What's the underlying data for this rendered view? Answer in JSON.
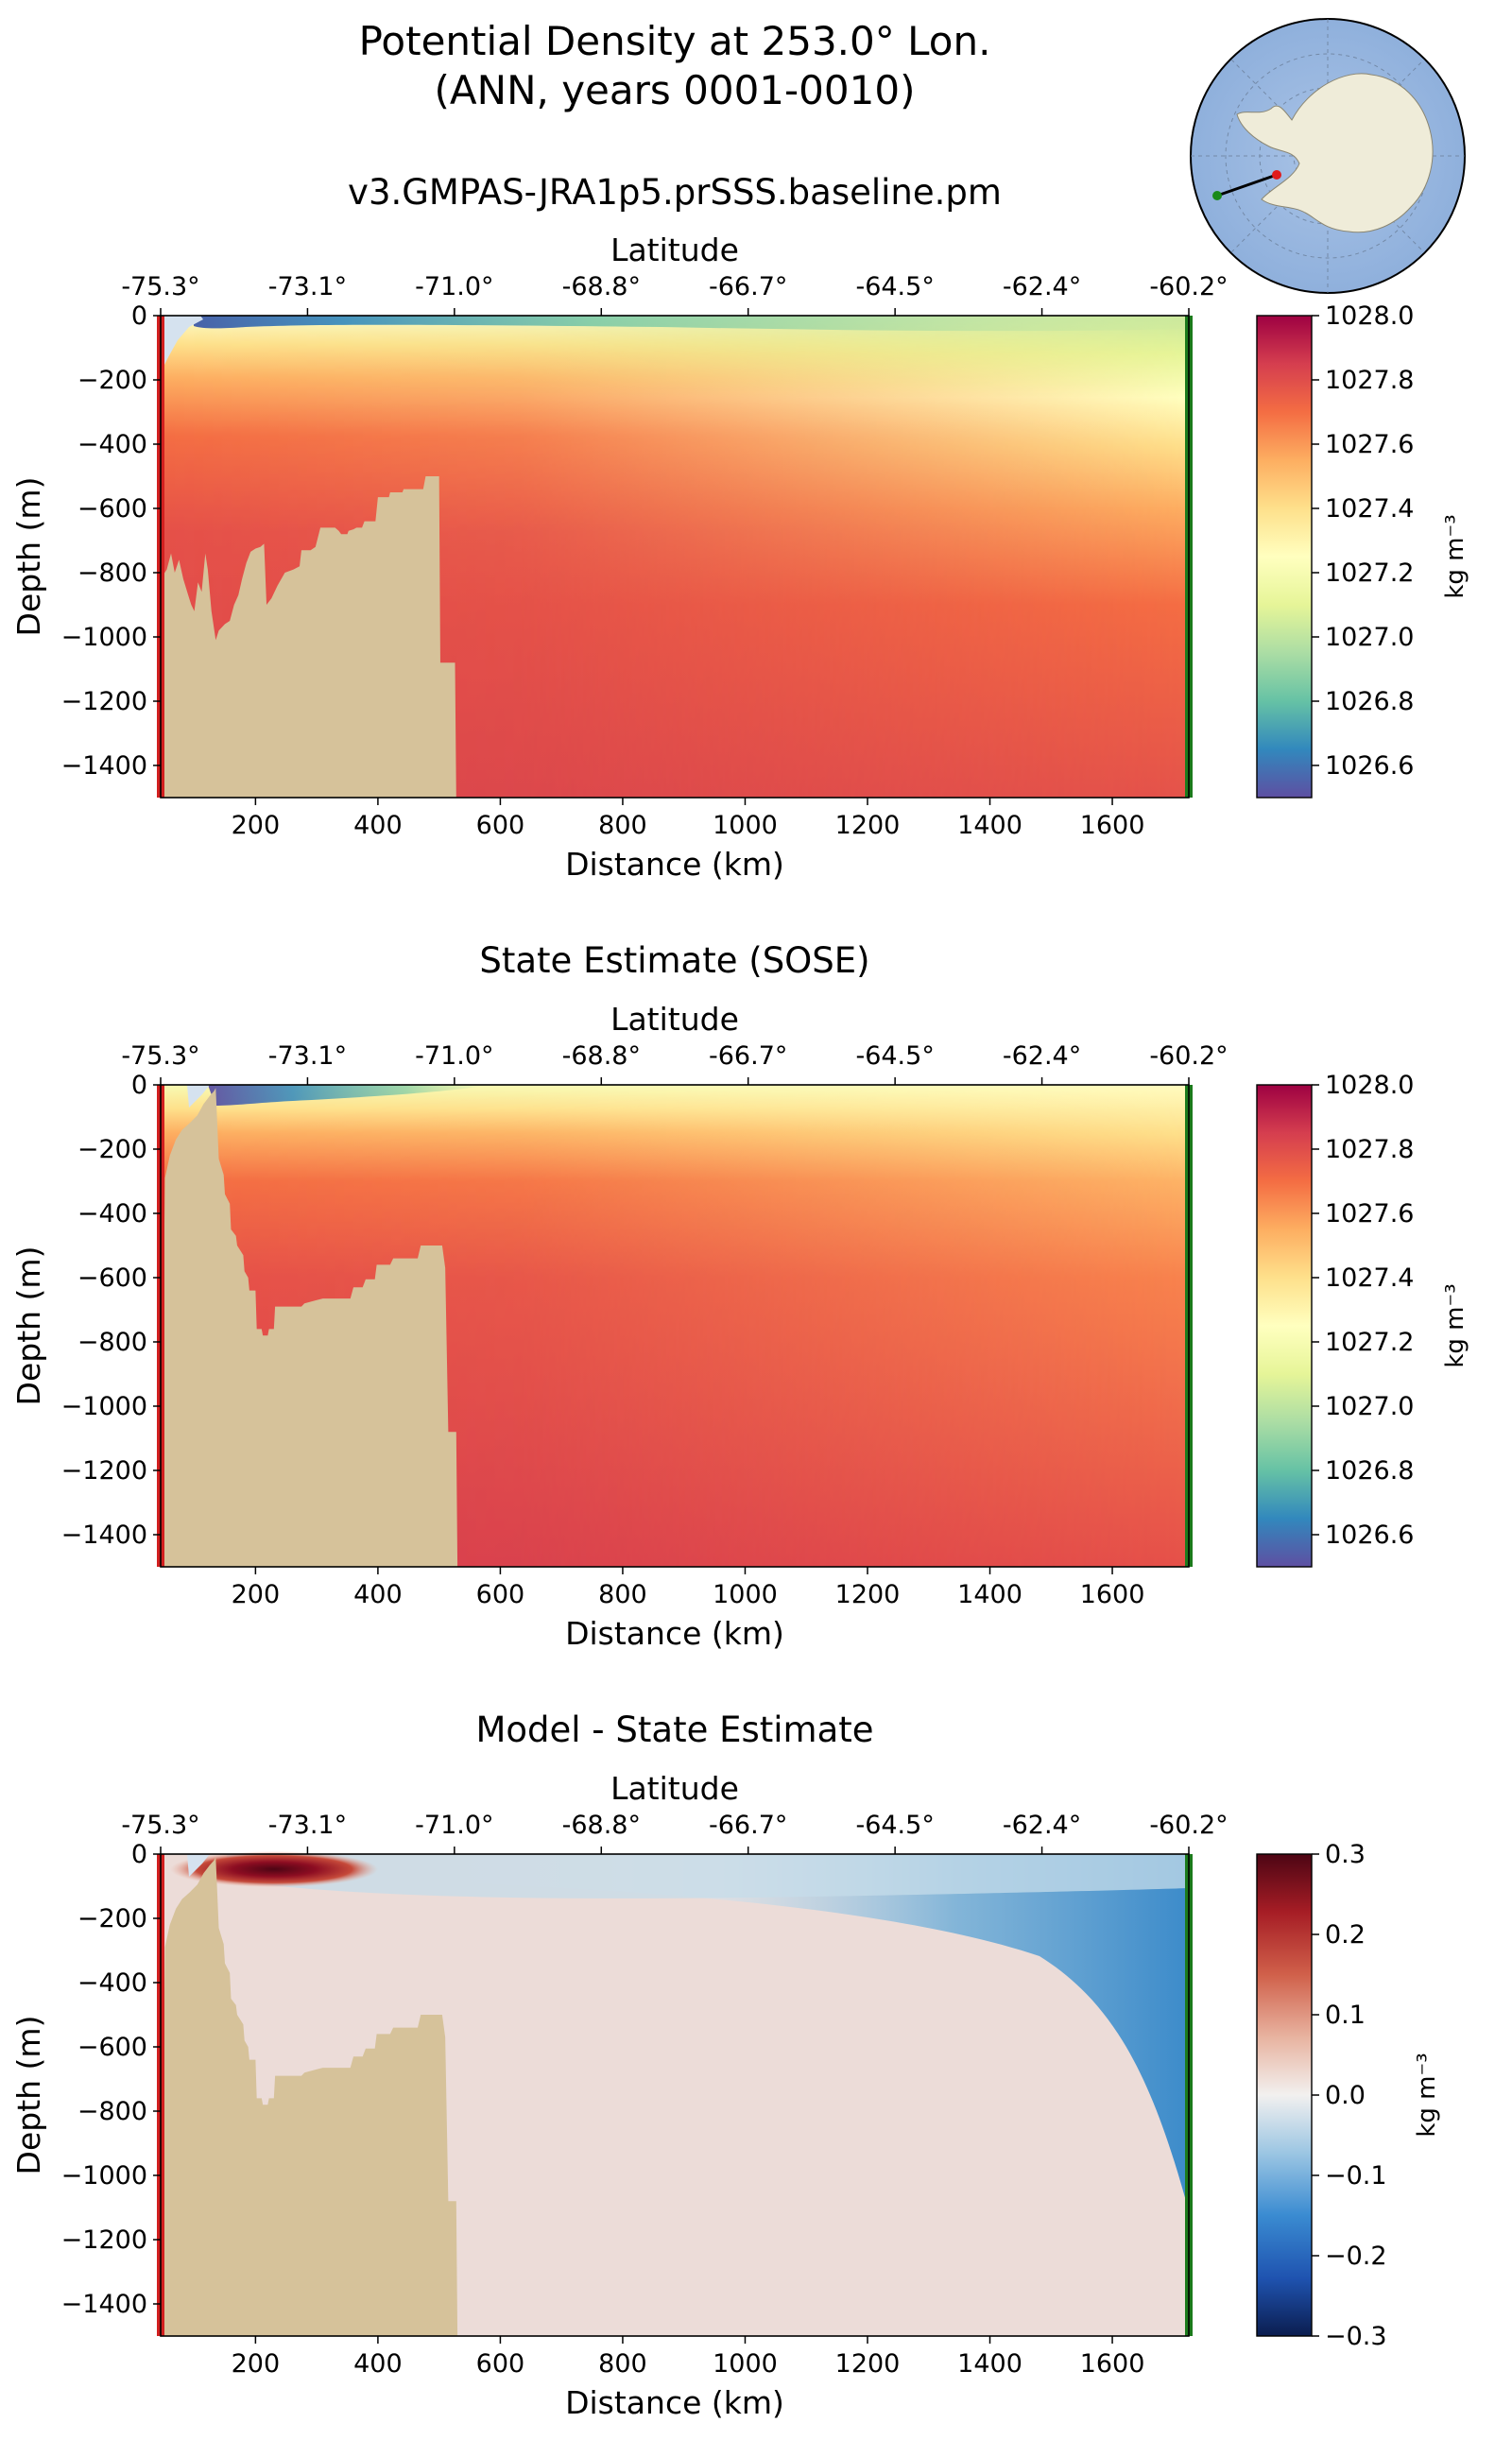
{
  "figure": {
    "title_line1": "Potential Density at 253.0° Lon.",
    "title_line2": "(ANN, years 0001-0010)"
  },
  "inset_map": {
    "description_icon": "antarctica-polar-map",
    "colors": {
      "ocean": "#9cb9e1",
      "land": "#efecd9",
      "transect": "#000000",
      "start": "#e01a1a",
      "end": "#1a8a1a"
    }
  },
  "colors": {
    "bathymetry": "#d6c29a",
    "ice_shelf": "#d5e2ef",
    "start_marker": "#d21f1f",
    "end_marker": "#1c7a1c"
  },
  "chart_data": [
    {
      "type": "heatmap",
      "title": "v3.GMPAS-JRA1p5.prSSS.baseline.pm",
      "xlabel": "Distance (km)",
      "ylabel": "Depth (m)",
      "top_xlabel": "Latitude",
      "xlim": [
        45,
        1725
      ],
      "ylim": [
        -1500,
        0
      ],
      "x_ticks": [
        "200",
        "400",
        "600",
        "800",
        "1000",
        "1200",
        "1400",
        "1600"
      ],
      "y_ticks": [
        "0",
        "−200",
        "−400",
        "−600",
        "−800",
        "−1000",
        "−1200",
        "−1400"
      ],
      "lat_ticks": [
        "-75.3°",
        "-73.1°",
        "-71.0°",
        "-68.8°",
        "-66.7°",
        "-64.5°",
        "-62.4°",
        "-60.2°"
      ],
      "colormap": "Spectral_r",
      "colorbar": {
        "label": "kg m⁻³",
        "range": [
          1026.5,
          1028.0
        ],
        "ticks": [
          "1028.0",
          "1027.8",
          "1027.6",
          "1027.4",
          "1027.2",
          "1027.0",
          "1026.8",
          "1026.6"
        ]
      },
      "bathymetry_depth": [
        [
          45,
          -820
        ],
        [
          55,
          -790
        ],
        [
          62,
          -740
        ],
        [
          68,
          -800
        ],
        [
          75,
          -760
        ],
        [
          82,
          -820
        ],
        [
          90,
          -870
        ],
        [
          95,
          -900
        ],
        [
          100,
          -920
        ],
        [
          106,
          -830
        ],
        [
          112,
          -860
        ],
        [
          118,
          -740
        ],
        [
          122,
          -790
        ],
        [
          128,
          -920
        ],
        [
          135,
          -1010
        ],
        [
          140,
          -980
        ],
        [
          150,
          -960
        ],
        [
          158,
          -950
        ],
        [
          165,
          -900
        ],
        [
          172,
          -870
        ],
        [
          178,
          -820
        ],
        [
          185,
          -770
        ],
        [
          192,
          -735
        ],
        [
          200,
          -725
        ],
        [
          208,
          -720
        ],
        [
          214,
          -710
        ],
        [
          218,
          -900
        ],
        [
          226,
          -880
        ],
        [
          236,
          -840
        ],
        [
          248,
          -800
        ],
        [
          262,
          -790
        ],
        [
          272,
          -780
        ],
        [
          275,
          -730
        ],
        [
          290,
          -730
        ],
        [
          298,
          -720
        ],
        [
          306,
          -660
        ],
        [
          330,
          -660
        ],
        [
          336,
          -670
        ],
        [
          340,
          -680
        ],
        [
          350,
          -680
        ],
        [
          352,
          -670
        ],
        [
          360,
          -665
        ],
        [
          365,
          -660
        ],
        [
          374,
          -660
        ],
        [
          378,
          -640
        ],
        [
          396,
          -640
        ],
        [
          400,
          -565
        ],
        [
          418,
          -565
        ],
        [
          420,
          -550
        ],
        [
          440,
          -550
        ],
        [
          442,
          -540
        ],
        [
          474,
          -540
        ],
        [
          478,
          -500
        ],
        [
          500,
          -500
        ],
        [
          502,
          -1080
        ],
        [
          526,
          -1080
        ],
        [
          528,
          -1500
        ]
      ],
      "ice_shelf": "small wedge near 60–110 km, 0 to −175 m",
      "field_description": "Light, fresh surface layer (≈1026.5–1026.9) from ~100 km to ~900 km, thinning offshore; pycnocline near −100 to −300 m deepening northward; deep water ≈1027.8 near coast, ≈1027.75 offshore"
    },
    {
      "type": "heatmap",
      "title": "State Estimate (SOSE)",
      "xlabel": "Distance (km)",
      "ylabel": "Depth (m)",
      "top_xlabel": "Latitude",
      "xlim": [
        45,
        1725
      ],
      "ylim": [
        -1500,
        0
      ],
      "x_ticks": [
        "200",
        "400",
        "600",
        "800",
        "1000",
        "1200",
        "1400",
        "1600"
      ],
      "y_ticks": [
        "0",
        "−200",
        "−400",
        "−600",
        "−800",
        "−1000",
        "−1200",
        "−1400"
      ],
      "lat_ticks": [
        "-75.3°",
        "-73.1°",
        "-71.0°",
        "-68.8°",
        "-66.7°",
        "-64.5°",
        "-62.4°",
        "-60.2°"
      ],
      "colormap": "Spectral_r",
      "colorbar": {
        "label": "kg m⁻³",
        "range": [
          1026.5,
          1028.0
        ],
        "ticks": [
          "1028.0",
          "1027.8",
          "1027.6",
          "1027.4",
          "1027.2",
          "1027.0",
          "1026.8",
          "1026.6"
        ]
      },
      "bathymetry_depth": [
        [
          45,
          -1500
        ],
        [
          52,
          -290
        ],
        [
          60,
          -220
        ],
        [
          70,
          -170
        ],
        [
          80,
          -140
        ],
        [
          92,
          -120
        ],
        [
          105,
          -95
        ],
        [
          115,
          -60
        ],
        [
          125,
          -35
        ],
        [
          132,
          -20
        ],
        [
          135,
          -10
        ],
        [
          140,
          -230
        ],
        [
          148,
          -280
        ],
        [
          150,
          -340
        ],
        [
          158,
          -370
        ],
        [
          160,
          -450
        ],
        [
          168,
          -470
        ],
        [
          170,
          -500
        ],
        [
          180,
          -530
        ],
        [
          182,
          -580
        ],
        [
          188,
          -600
        ],
        [
          190,
          -640
        ],
        [
          200,
          -640
        ],
        [
          202,
          -760
        ],
        [
          210,
          -760
        ],
        [
          212,
          -780
        ],
        [
          220,
          -780
        ],
        [
          222,
          -760
        ],
        [
          230,
          -760
        ],
        [
          232,
          -690
        ],
        [
          275,
          -690
        ],
        [
          280,
          -680
        ],
        [
          300,
          -670
        ],
        [
          310,
          -665
        ],
        [
          340,
          -665
        ],
        [
          355,
          -665
        ],
        [
          360,
          -630
        ],
        [
          375,
          -630
        ],
        [
          380,
          -605
        ],
        [
          395,
          -605
        ],
        [
          398,
          -560
        ],
        [
          420,
          -560
        ],
        [
          425,
          -540
        ],
        [
          465,
          -540
        ],
        [
          470,
          -500
        ],
        [
          505,
          -500
        ],
        [
          510,
          -570
        ],
        [
          515,
          -1080
        ],
        [
          528,
          -1080
        ],
        [
          530,
          -1500
        ]
      ],
      "ice_shelf": "thin wedge near 80–130 km, 0 to −80 m",
      "field_description": "Light surface layer confined near coast (130–450 km, 0 to −60 m); pycnocline −50 to −250 m; deep water ≈1027.85 near coast, ≈1027.7 offshore"
    },
    {
      "type": "heatmap",
      "title": "Model - State Estimate",
      "xlabel": "Distance (km)",
      "ylabel": "Depth (m)",
      "top_xlabel": "Latitude",
      "xlim": [
        45,
        1725
      ],
      "ylim": [
        -1500,
        0
      ],
      "x_ticks": [
        "200",
        "400",
        "600",
        "800",
        "1000",
        "1200",
        "1400",
        "1600"
      ],
      "y_ticks": [
        "0",
        "−200",
        "−400",
        "−600",
        "−800",
        "−1000",
        "−1200",
        "−1400"
      ],
      "lat_ticks": [
        "-75.3°",
        "-73.1°",
        "-71.0°",
        "-68.8°",
        "-66.7°",
        "-64.5°",
        "-62.4°",
        "-60.2°"
      ],
      "colormap": "RdBu_r",
      "colorbar": {
        "label": "kg m⁻³",
        "range": [
          -0.3,
          0.3
        ],
        "ticks": [
          "0.3",
          "0.2",
          "0.1",
          "0.0",
          "−0.1",
          "−0.2",
          "−0.3"
        ]
      },
      "bathymetry_depth": [
        [
          45,
          -1500
        ],
        [
          52,
          -290
        ],
        [
          60,
          -220
        ],
        [
          70,
          -170
        ],
        [
          80,
          -140
        ],
        [
          92,
          -120
        ],
        [
          105,
          -95
        ],
        [
          115,
          -60
        ],
        [
          125,
          -35
        ],
        [
          132,
          -20
        ],
        [
          135,
          -10
        ],
        [
          140,
          -230
        ],
        [
          148,
          -280
        ],
        [
          150,
          -340
        ],
        [
          158,
          -370
        ],
        [
          160,
          -450
        ],
        [
          168,
          -470
        ],
        [
          170,
          -500
        ],
        [
          180,
          -530
        ],
        [
          182,
          -580
        ],
        [
          188,
          -600
        ],
        [
          190,
          -640
        ],
        [
          200,
          -640
        ],
        [
          202,
          -760
        ],
        [
          210,
          -760
        ],
        [
          212,
          -780
        ],
        [
          220,
          -780
        ],
        [
          222,
          -760
        ],
        [
          230,
          -760
        ],
        [
          232,
          -690
        ],
        [
          275,
          -690
        ],
        [
          280,
          -680
        ],
        [
          300,
          -670
        ],
        [
          310,
          -665
        ],
        [
          340,
          -665
        ],
        [
          355,
          -665
        ],
        [
          360,
          -630
        ],
        [
          375,
          -630
        ],
        [
          380,
          -605
        ],
        [
          395,
          -605
        ],
        [
          398,
          -560
        ],
        [
          420,
          -560
        ],
        [
          425,
          -540
        ],
        [
          465,
          -540
        ],
        [
          470,
          -500
        ],
        [
          505,
          -500
        ],
        [
          510,
          -570
        ],
        [
          515,
          -1080
        ],
        [
          528,
          -1080
        ],
        [
          530,
          -1500
        ]
      ],
      "ice_shelf": "thin wedge near 80–130 km, 0 to −80 m",
      "field_description": "Strong positive anomaly (~+0.3) near 130–400 km, 0 to −50 m; strong negative anomaly (~−0.3) at surface 400–1600 km; moderate negative (~−0.15) at −200 to −700 m offshore beyond 1100 km; weak positive (~+0.03) in deep water and near shelf 150–500 km"
    }
  ]
}
